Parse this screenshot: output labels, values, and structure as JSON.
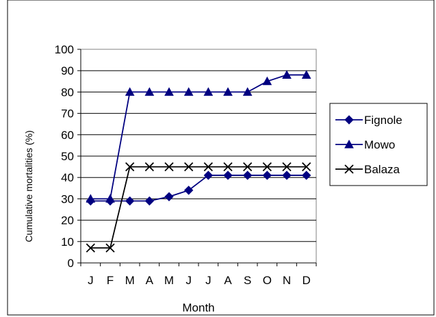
{
  "chart_data": {
    "type": "line",
    "title": "",
    "xlabel": "Month",
    "ylabel": "Cumulative mortalities (%)",
    "categories": [
      "J",
      "F",
      "M",
      "A",
      "M",
      "J",
      "J",
      "A",
      "S",
      "O",
      "N",
      "D"
    ],
    "ylim": [
      0,
      100
    ],
    "yticks": [
      0,
      10,
      20,
      30,
      40,
      50,
      60,
      70,
      80,
      90,
      100
    ],
    "grid": "horizontal",
    "legend_position": "right",
    "series": [
      {
        "name": "Fignole",
        "marker": "diamond",
        "color": "#000080",
        "values": [
          29,
          29,
          29,
          29,
          31,
          34,
          41,
          41,
          41,
          41,
          41,
          41
        ]
      },
      {
        "name": "Mowo",
        "marker": "triangle",
        "color": "#000080",
        "values": [
          30,
          30,
          80,
          80,
          80,
          80,
          80,
          80,
          80,
          85,
          88,
          88
        ]
      },
      {
        "name": "Balaza",
        "marker": "x",
        "color": "#000000",
        "values": [
          7,
          7,
          45,
          45,
          45,
          45,
          45,
          45,
          45,
          45,
          45,
          45
        ]
      }
    ]
  }
}
